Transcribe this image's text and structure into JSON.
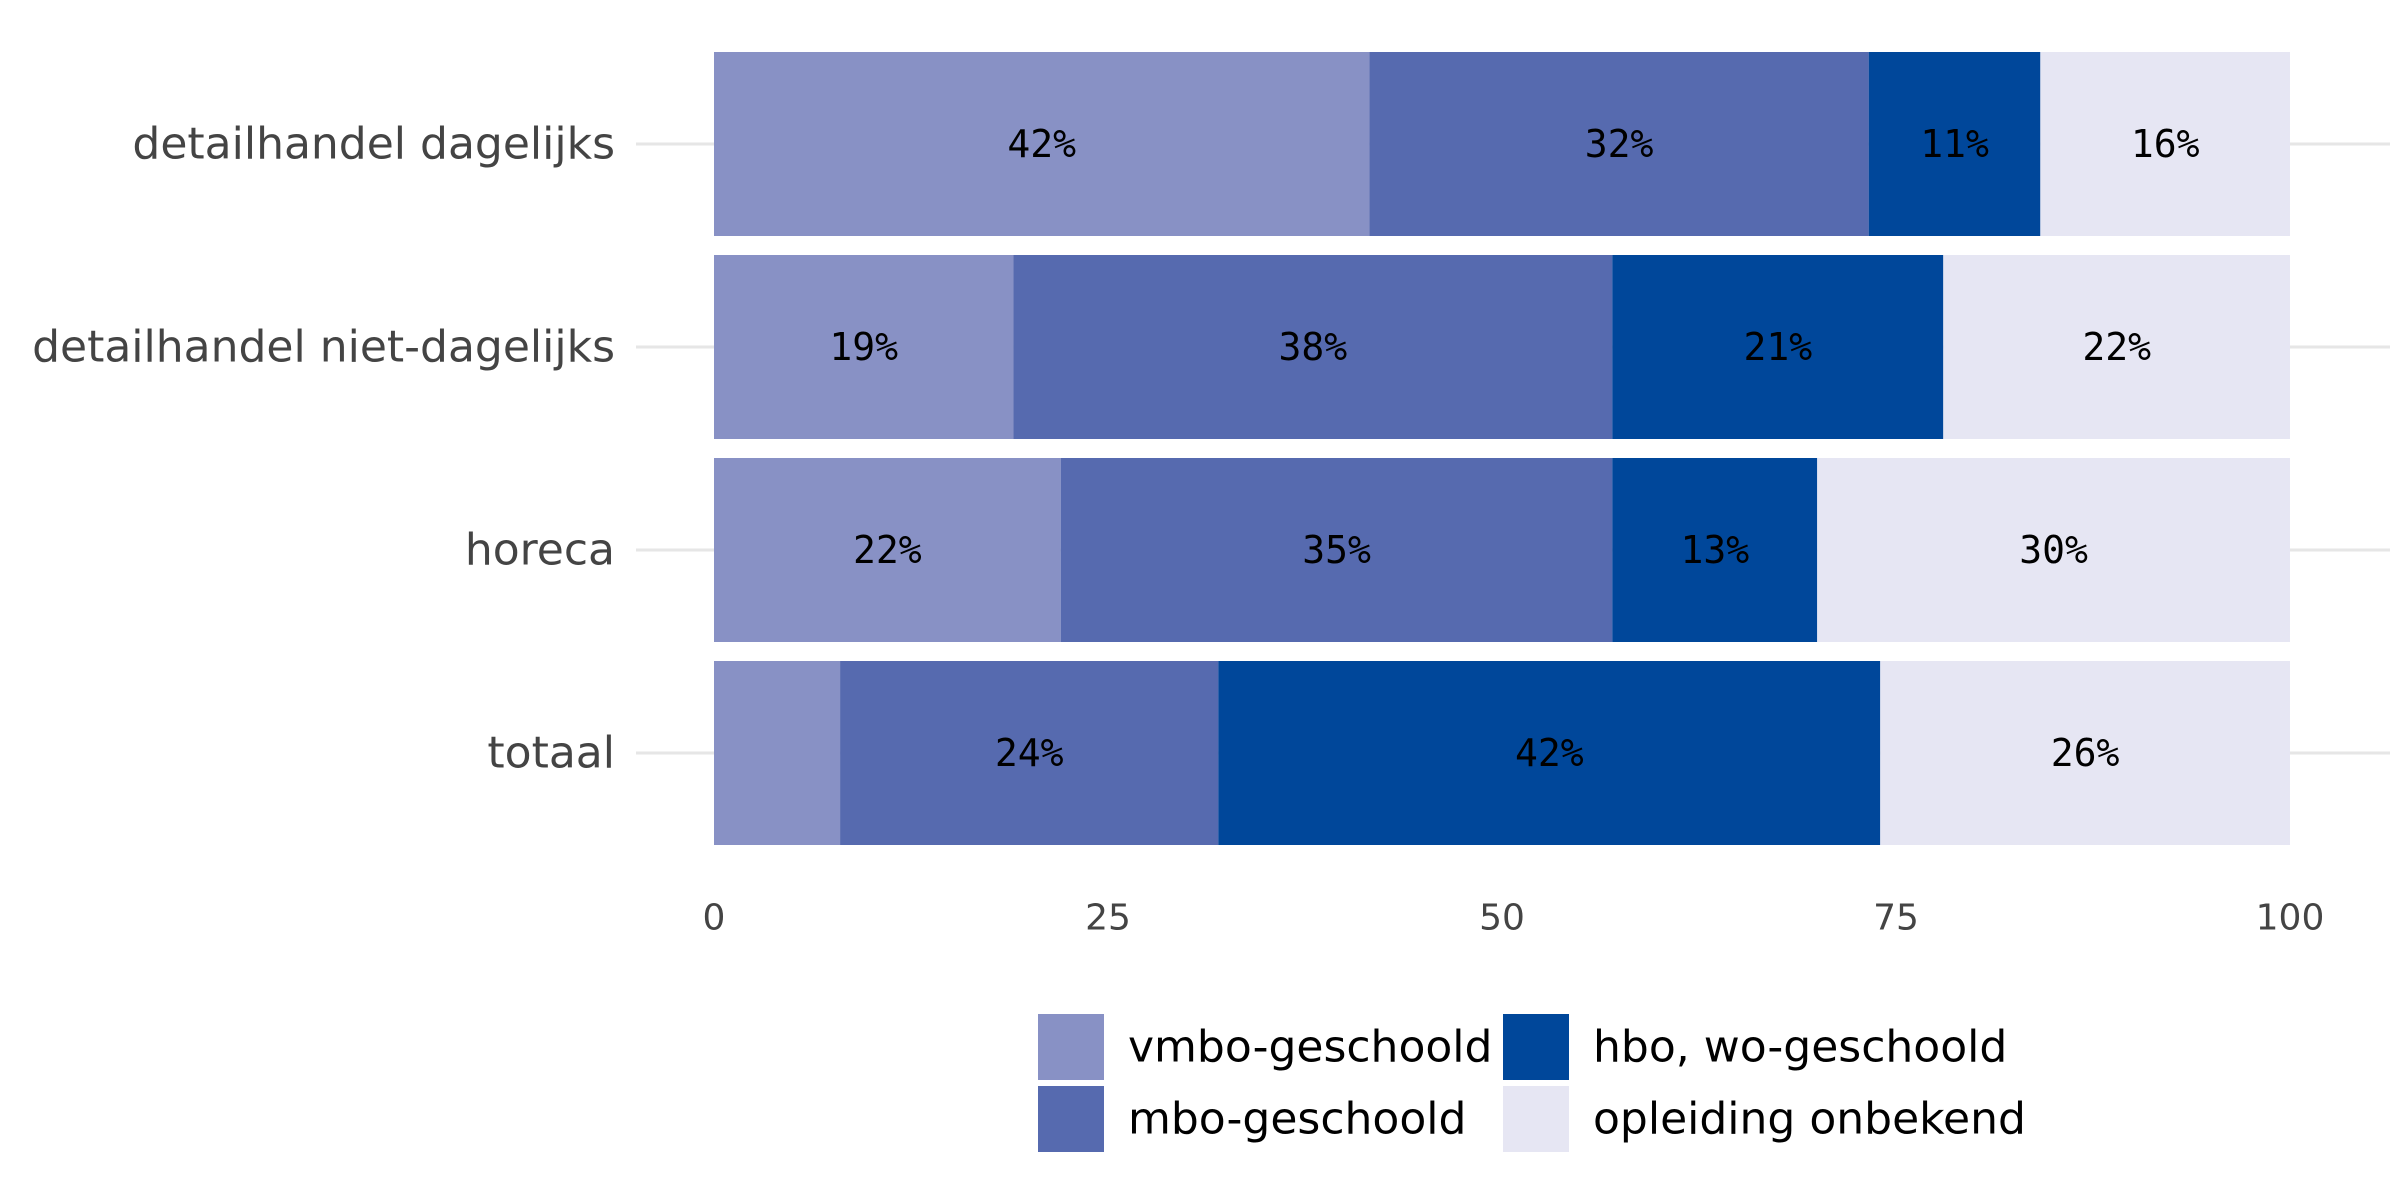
{
  "chart_data": {
    "type": "bar",
    "orientation": "horizontal",
    "stacked": true,
    "categories": [
      "detailhandel dagelijks",
      "detailhandel niet-dagelijks",
      "horeca",
      "totaal"
    ],
    "series": [
      {
        "name": "vmbo-geschoold",
        "color": "#8891c5",
        "values": [
          42,
          19,
          22,
          8
        ],
        "labels": [
          "42%",
          "19%",
          "22%",
          ""
        ]
      },
      {
        "name": "mbo-geschoold",
        "color": "#566aaf",
        "values": [
          32,
          38,
          35,
          24
        ],
        "labels": [
          "32%",
          "38%",
          "35%",
          "24%"
        ]
      },
      {
        "name": "hbo, wo-geschoold",
        "color": "#00479a",
        "values": [
          11,
          21,
          13,
          42
        ],
        "labels": [
          "11%",
          "21%",
          "13%",
          "42%"
        ]
      },
      {
        "name": "opleiding onbekend",
        "color": "#e6e6f3",
        "values": [
          16,
          22,
          30,
          26
        ],
        "labels": [
          "16%",
          "22%",
          "30%",
          "26%"
        ]
      }
    ],
    "xlim": [
      0,
      100
    ],
    "xticks": [
      0,
      25,
      50,
      75,
      100
    ],
    "xtick_labels": [
      "0",
      "25",
      "50",
      "75",
      "100"
    ],
    "grid": "horizontal lines at categories",
    "legend_position": "bottom"
  }
}
